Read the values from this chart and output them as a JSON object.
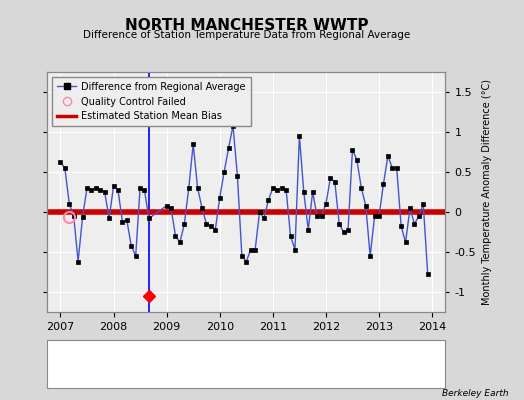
{
  "title": "NORTH MANCHESTER WWTP",
  "subtitle": "Difference of Station Temperature Data from Regional Average",
  "ylabel": "Monthly Temperature Anomaly Difference (°C)",
  "credit": "Berkeley Earth",
  "ylim": [
    -1.25,
    1.75
  ],
  "yticks": [
    -1.0,
    -0.5,
    0.0,
    0.5,
    1.0,
    1.5
  ],
  "xlim_start": 2006.75,
  "xlim_end": 2014.25,
  "bias_value": 0.0,
  "vertical_line_x": 2008.67,
  "station_move_x": 2008.67,
  "station_move_y": -1.05,
  "qc_fail_x": 2007.17,
  "qc_fail_y": -0.06,
  "line_color": "#4455cc",
  "bias_color": "#cc0000",
  "bg_color": "#d8d8d8",
  "plot_bg_color": "#eeeeee",
  "grid_color": "#ffffff",
  "time_series": [
    [
      2007.0,
      0.62
    ],
    [
      2007.083,
      0.55
    ],
    [
      2007.167,
      0.1
    ],
    [
      2007.25,
      -0.05
    ],
    [
      2007.333,
      -0.62
    ],
    [
      2007.417,
      -0.06
    ],
    [
      2007.5,
      0.3
    ],
    [
      2007.583,
      0.28
    ],
    [
      2007.667,
      0.3
    ],
    [
      2007.75,
      0.28
    ],
    [
      2007.833,
      0.25
    ],
    [
      2007.917,
      -0.08
    ],
    [
      2008.0,
      0.32
    ],
    [
      2008.083,
      0.28
    ],
    [
      2008.167,
      -0.12
    ],
    [
      2008.25,
      -0.1
    ],
    [
      2008.333,
      -0.42
    ],
    [
      2008.417,
      -0.55
    ],
    [
      2008.5,
      0.3
    ],
    [
      2008.583,
      0.27
    ],
    [
      2008.667,
      -0.08
    ],
    [
      2009.0,
      0.08
    ],
    [
      2009.083,
      0.05
    ],
    [
      2009.167,
      -0.3
    ],
    [
      2009.25,
      -0.38
    ],
    [
      2009.333,
      -0.15
    ],
    [
      2009.417,
      0.3
    ],
    [
      2009.5,
      0.85
    ],
    [
      2009.583,
      0.3
    ],
    [
      2009.667,
      0.05
    ],
    [
      2009.75,
      -0.15
    ],
    [
      2009.833,
      -0.18
    ],
    [
      2009.917,
      -0.22
    ],
    [
      2010.0,
      0.18
    ],
    [
      2010.083,
      0.5
    ],
    [
      2010.167,
      0.8
    ],
    [
      2010.25,
      1.08
    ],
    [
      2010.333,
      0.45
    ],
    [
      2010.417,
      -0.55
    ],
    [
      2010.5,
      -0.62
    ],
    [
      2010.583,
      -0.47
    ],
    [
      2010.667,
      -0.47
    ],
    [
      2010.75,
      0.0
    ],
    [
      2010.833,
      -0.08
    ],
    [
      2010.917,
      0.15
    ],
    [
      2011.0,
      0.3
    ],
    [
      2011.083,
      0.28
    ],
    [
      2011.167,
      0.3
    ],
    [
      2011.25,
      0.28
    ],
    [
      2011.333,
      -0.3
    ],
    [
      2011.417,
      -0.47
    ],
    [
      2011.5,
      0.95
    ],
    [
      2011.583,
      0.25
    ],
    [
      2011.667,
      -0.22
    ],
    [
      2011.75,
      0.25
    ],
    [
      2011.833,
      -0.05
    ],
    [
      2011.917,
      -0.05
    ],
    [
      2012.0,
      0.1
    ],
    [
      2012.083,
      0.42
    ],
    [
      2012.167,
      0.38
    ],
    [
      2012.25,
      -0.15
    ],
    [
      2012.333,
      -0.25
    ],
    [
      2012.417,
      -0.22
    ],
    [
      2012.5,
      0.78
    ],
    [
      2012.583,
      0.65
    ],
    [
      2012.667,
      0.3
    ],
    [
      2012.75,
      0.08
    ],
    [
      2012.833,
      -0.55
    ],
    [
      2012.917,
      -0.05
    ],
    [
      2013.0,
      -0.05
    ],
    [
      2013.083,
      0.35
    ],
    [
      2013.167,
      0.7
    ],
    [
      2013.25,
      0.55
    ],
    [
      2013.333,
      0.55
    ],
    [
      2013.417,
      -0.18
    ],
    [
      2013.5,
      -0.38
    ],
    [
      2013.583,
      0.05
    ],
    [
      2013.667,
      -0.15
    ],
    [
      2013.75,
      -0.05
    ],
    [
      2013.833,
      0.1
    ],
    [
      2013.917,
      -0.78
    ]
  ]
}
